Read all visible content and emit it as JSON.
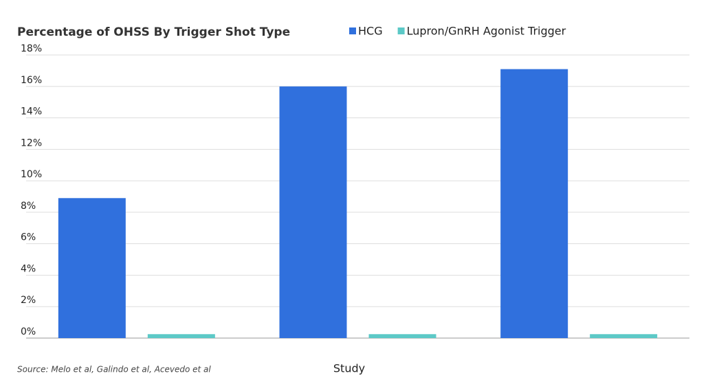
{
  "chart_data": {
    "type": "bar",
    "title": "Percentage of OHSS By Trigger Shot Type",
    "categories": [
      null,
      null,
      null
    ],
    "series": [
      {
        "name": "HCG",
        "color": "#3070dd",
        "values": [
          8.9,
          16,
          17.1
        ]
      },
      {
        "name": "Lupron/GnRH Agonist Trigger",
        "color": "#5cc9c7",
        "values": [
          0.25,
          0.25,
          0.25
        ]
      }
    ],
    "ylim": [
      0,
      18
    ],
    "yticks": [
      {
        "value": 0,
        "label": "0%"
      },
      {
        "value": 2,
        "label": "2%"
      },
      {
        "value": 4,
        "label": "4%"
      },
      {
        "value": 6,
        "label": "6%"
      },
      {
        "value": 8,
        "label": "8%"
      },
      {
        "value": 10,
        "label": "10%"
      },
      {
        "value": 12,
        "label": "12%"
      },
      {
        "value": 14,
        "label": "14%"
      },
      {
        "value": 16,
        "label": "16%"
      },
      {
        "value": 18,
        "label": "18%"
      }
    ],
    "grid": true,
    "xlabel": "Study",
    "source": "Source: Melo et al, Galindo et al, Acevedo et al"
  }
}
